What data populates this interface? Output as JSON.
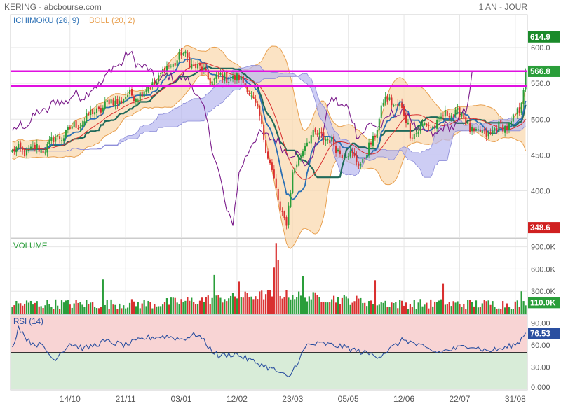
{
  "header": {
    "title": "KERING - abcbourse.com",
    "period": "1 AN - JOUR"
  },
  "indicators": {
    "ichimoku": "ICHIMOKU (26, 9)",
    "boll": "BOLL (20, 2)",
    "volume": "VOLUME",
    "rsi": "RSI (14)"
  },
  "colors": {
    "up": "#2a9e3a",
    "down": "#d93030",
    "ichimoku_line": "#2a6fb4",
    "kijun": "#1f6a5a",
    "boll_fill": "#f9d9b0",
    "boll_line": "#e8a050",
    "cloud": "#b8b8f0",
    "magenta": "#e010e0",
    "rsi_line": "#2a4fa0",
    "rsi_over": "#f8d4d4",
    "rsi_under": "#d8ecd8",
    "purple": "#7a1a8a"
  },
  "chart_data": [
    {
      "type": "candlestick",
      "ylim": [
        335,
        645
      ],
      "yticks": [
        "600.0",
        "550.0",
        "500.0",
        "450.0",
        "400.0"
      ],
      "ytick_values": [
        600,
        550,
        500,
        450,
        400
      ],
      "xticks": [
        "14/10",
        "21/11",
        "03/01",
        "12/02",
        "23/03",
        "05/05",
        "12/06",
        "22/07",
        "31/08"
      ],
      "xtick_index": [
        28,
        55,
        82,
        109,
        136,
        163,
        190,
        217,
        244
      ],
      "n": 250,
      "anchors_idx": [
        0,
        14,
        28,
        45,
        55,
        65,
        72,
        82,
        89,
        96,
        106,
        114,
        120,
        125,
        130,
        133,
        136,
        142,
        150,
        157,
        163,
        170,
        175,
        180,
        188,
        193,
        200,
        207,
        212,
        218,
        225,
        232,
        238,
        242,
        246,
        249
      ],
      "anchors_price": [
        455,
        458,
        485,
        520,
        530,
        540,
        562,
        590,
        575,
        555,
        560,
        548,
        500,
        440,
        370,
        360,
        420,
        470,
        480,
        460,
        450,
        440,
        470,
        525,
        520,
        480,
        490,
        495,
        512,
        505,
        478,
        482,
        490,
        495,
        510,
        566
      ],
      "price_levels": [
        {
          "label": "614.9",
          "value": 614.9,
          "color": "#1a8a2a"
        },
        {
          "label": "566.8",
          "value": 566.8,
          "color": "#2a9e3a"
        },
        {
          "label": "348.6",
          "value": 348.6,
          "color": "#d02020"
        }
      ],
      "hlines": [
        {
          "value": 567,
          "color": "#e010e0"
        },
        {
          "value": 546,
          "color": "#e010e0"
        }
      ]
    },
    {
      "type": "bar",
      "name": "VOLUME",
      "ylim": [
        0,
        1000000
      ],
      "yticks": [
        "900.0K",
        "600.0K",
        "300.0K"
      ],
      "ytick_values": [
        900000,
        600000,
        300000
      ],
      "last_label": "110.0K",
      "last_value": 110000,
      "spike_idx": [
        44,
        98,
        110,
        127,
        128,
        129,
        141,
        176,
        209,
        247
      ],
      "spike_values": [
        460000,
        520000,
        430000,
        620000,
        950000,
        720000,
        500000,
        450000,
        400000,
        300000
      ]
    },
    {
      "type": "line",
      "name": "RSI (14)",
      "ylim": [
        0,
        100
      ],
      "yticks": [
        "90.00",
        "60.00",
        "30.00",
        "0.000"
      ],
      "ytick_values": [
        90,
        60,
        30,
        0
      ],
      "threshold": 50,
      "last_label": "76.53",
      "last_value": 76.53,
      "anchors_idx": [
        0,
        3,
        8,
        15,
        20,
        28,
        35,
        45,
        55,
        65,
        75,
        82,
        90,
        96,
        100,
        108,
        115,
        122,
        128,
        134,
        138,
        143,
        150,
        160,
        170,
        178,
        185,
        190,
        198,
        206,
        215,
        222,
        230,
        238,
        245,
        249
      ],
      "anchors_val": [
        55,
        85,
        65,
        58,
        40,
        62,
        55,
        65,
        60,
        70,
        72,
        68,
        75,
        55,
        45,
        48,
        40,
        32,
        25,
        15,
        35,
        60,
        62,
        58,
        50,
        45,
        58,
        68,
        58,
        50,
        55,
        60,
        52,
        55,
        62,
        76
      ]
    }
  ]
}
